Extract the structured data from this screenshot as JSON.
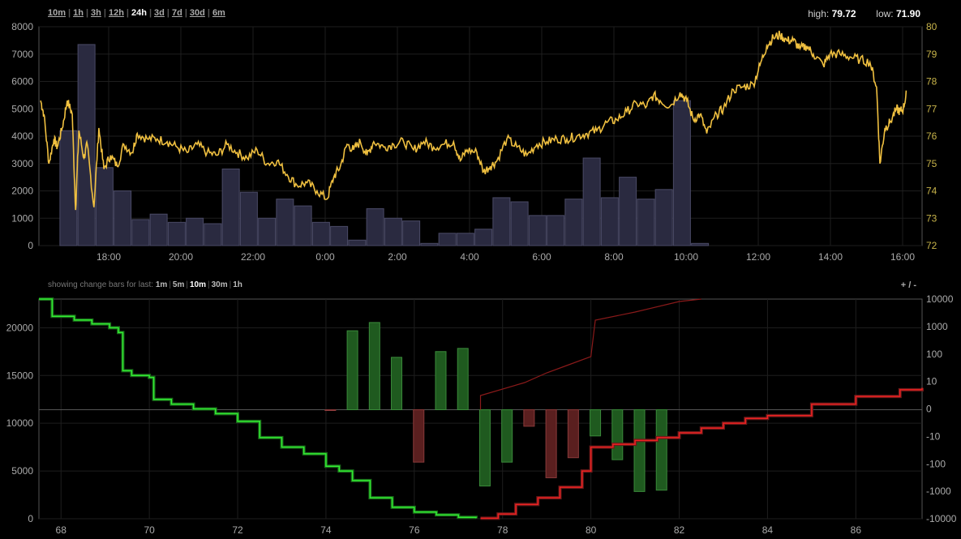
{
  "range_links": [
    {
      "label": "10m",
      "active": false
    },
    {
      "label": "1h",
      "active": false
    },
    {
      "label": "3h",
      "active": false
    },
    {
      "label": "12h",
      "active": false
    },
    {
      "label": "24h",
      "active": true
    },
    {
      "label": "3d",
      "active": false
    },
    {
      "label": "7d",
      "active": false
    },
    {
      "label": "30d",
      "active": false
    },
    {
      "label": "6m",
      "active": false
    }
  ],
  "stats": {
    "high_label": "high:",
    "high_value": "79.72",
    "low_label": "low:",
    "low_value": "71.90"
  },
  "change_bars": {
    "prefix": "showing change bars for last:",
    "options": [
      {
        "label": "1m",
        "active": false
      },
      {
        "label": "5m",
        "active": false
      },
      {
        "label": "10m",
        "active": true
      },
      {
        "label": "30m",
        "active": false
      },
      {
        "label": "1h",
        "active": false
      }
    ]
  },
  "zoom": {
    "plus": "+",
    "sep": "/",
    "minus": "-"
  },
  "colors": {
    "price_line": "#f0c040",
    "volume_bar": "#2a2a40",
    "bid_line": "#33ee33",
    "ask_line": "#ee2222",
    "up_bar": "#1f5a1f",
    "down_bar": "#5a1f1f"
  },
  "chart_data": [
    {
      "type": "bar+line",
      "x_tick_labels": [
        "18:00",
        "20:00",
        "22:00",
        "0:00",
        "2:00",
        "4:00",
        "6:00",
        "8:00",
        "10:00",
        "12:00",
        "14:00",
        "16:00"
      ],
      "y_left_ticks": [
        0,
        1000,
        2000,
        3000,
        4000,
        5000,
        6000,
        7000,
        8000
      ],
      "y_right_ticks": [
        72,
        73,
        74,
        75,
        76,
        77,
        78,
        79,
        80
      ],
      "ylim_volume": [
        0,
        8000
      ],
      "ylim_price": [
        72,
        80
      ],
      "volume_bars": [
        4200,
        7350,
        2850,
        2000,
        950,
        1150,
        850,
        1000,
        800,
        2800,
        1950,
        1000,
        1700,
        1450,
        850,
        700,
        200,
        1350,
        1000,
        900,
        80,
        450,
        450,
        600,
        1750,
        1600,
        1100,
        1100,
        1700,
        3200,
        1750,
        2500,
        1700,
        2050,
        5300,
        80
      ],
      "price_series": [
        [
          16.5,
          77.3
        ],
        [
          16.6,
          76.8
        ],
        [
          16.75,
          75.0
        ],
        [
          16.9,
          75.9
        ],
        [
          17.0,
          75.6
        ],
        [
          17.15,
          76.3
        ],
        [
          17.3,
          77.3
        ],
        [
          17.45,
          76.8
        ],
        [
          17.55,
          73.3
        ],
        [
          17.65,
          76.2
        ],
        [
          17.8,
          75.2
        ],
        [
          17.9,
          75.7
        ],
        [
          18.1,
          73.4
        ],
        [
          18.25,
          76.3
        ],
        [
          18.4,
          74.8
        ],
        [
          18.6,
          75.3
        ],
        [
          18.8,
          74.9
        ],
        [
          19.0,
          75.7
        ],
        [
          19.25,
          75.4
        ],
        [
          19.4,
          76.1
        ],
        [
          19.7,
          75.9
        ],
        [
          20.0,
          75.9
        ],
        [
          20.3,
          75.8
        ],
        [
          20.6,
          75.6
        ],
        [
          20.9,
          75.4
        ],
        [
          21.2,
          75.7
        ],
        [
          21.5,
          75.4
        ],
        [
          21.8,
          75.3
        ],
        [
          22.1,
          75.7
        ],
        [
          22.4,
          75.4
        ],
        [
          22.7,
          75.2
        ],
        [
          23.0,
          75.5
        ],
        [
          23.3,
          75.0
        ],
        [
          23.6,
          75.1
        ],
        [
          23.9,
          74.6
        ],
        [
          24.2,
          74.2
        ],
        [
          24.5,
          74.3
        ],
        [
          24.8,
          74.0
        ],
        [
          25.1,
          73.7
        ],
        [
          25.3,
          74.5
        ],
        [
          25.5,
          74.9
        ],
        [
          25.7,
          75.7
        ],
        [
          25.9,
          75.5
        ],
        [
          26.1,
          75.8
        ],
        [
          26.3,
          75.3
        ],
        [
          26.5,
          75.8
        ],
        [
          26.8,
          75.6
        ],
        [
          27.1,
          75.7
        ],
        [
          27.4,
          75.8
        ],
        [
          27.7,
          75.5
        ],
        [
          28.0,
          75.8
        ],
        [
          28.3,
          75.6
        ],
        [
          28.6,
          75.7
        ],
        [
          28.9,
          75.8
        ],
        [
          29.1,
          75.1
        ],
        [
          29.3,
          75.5
        ],
        [
          29.6,
          75.4
        ],
        [
          29.8,
          74.7
        ],
        [
          30.0,
          74.9
        ],
        [
          30.2,
          75.1
        ],
        [
          30.5,
          75.9
        ],
        [
          30.8,
          75.6
        ],
        [
          31.1,
          75.3
        ],
        [
          31.4,
          75.7
        ],
        [
          31.7,
          75.8
        ],
        [
          32.0,
          75.9
        ],
        [
          32.3,
          75.9
        ],
        [
          32.6,
          76.0
        ],
        [
          32.9,
          76.1
        ],
        [
          33.2,
          76.2
        ],
        [
          33.5,
          76.5
        ],
        [
          33.8,
          76.6
        ],
        [
          34.1,
          76.9
        ],
        [
          34.4,
          77.2
        ],
        [
          34.7,
          77.1
        ],
        [
          34.9,
          77.5
        ],
        [
          35.1,
          77.3
        ],
        [
          35.4,
          77.1
        ],
        [
          35.7,
          77.6
        ],
        [
          35.9,
          77.3
        ],
        [
          36.1,
          76.6
        ],
        [
          36.3,
          76.8
        ],
        [
          36.5,
          76.1
        ],
        [
          36.8,
          76.8
        ],
        [
          37.0,
          77.0
        ],
        [
          37.3,
          77.7
        ],
        [
          37.6,
          77.8
        ],
        [
          37.9,
          77.9
        ],
        [
          38.1,
          78.6
        ],
        [
          38.3,
          79.3
        ],
        [
          38.5,
          79.6
        ],
        [
          38.7,
          79.7
        ],
        [
          38.9,
          79.5
        ],
        [
          39.1,
          79.5
        ],
        [
          39.3,
          79.2
        ],
        [
          39.5,
          79.3
        ],
        [
          39.7,
          79.0
        ],
        [
          40.0,
          78.6
        ],
        [
          40.2,
          79.0
        ],
        [
          40.5,
          79.0
        ],
        [
          40.8,
          78.9
        ],
        [
          41.1,
          78.8
        ],
        [
          41.4,
          78.7
        ],
        [
          41.6,
          77.8
        ],
        [
          41.7,
          75.0
        ],
        [
          41.85,
          76.3
        ],
        [
          42.0,
          76.5
        ],
        [
          42.2,
          77.0
        ],
        [
          42.3,
          76.9
        ],
        [
          42.4,
          77.0
        ],
        [
          42.5,
          77.6
        ]
      ]
    },
    {
      "type": "depth+bar",
      "x_tick_labels": [
        "68",
        "70",
        "72",
        "74",
        "76",
        "78",
        "80",
        "82",
        "84",
        "86"
      ],
      "y_left_ticks": [
        0,
        5000,
        10000,
        15000,
        20000
      ],
      "y_right_tick_labels": [
        "-10000",
        "-1000",
        "-100",
        "-10",
        "0",
        "10",
        "100",
        "1000",
        "10000"
      ],
      "xlim": [
        67.5,
        87.5
      ],
      "ylim_depth": [
        0,
        23000
      ],
      "bid_depth": [
        [
          67.5,
          23000
        ],
        [
          67.8,
          21200
        ],
        [
          68.3,
          20800
        ],
        [
          68.7,
          20400
        ],
        [
          69.1,
          20000
        ],
        [
          69.3,
          19500
        ],
        [
          69.4,
          15500
        ],
        [
          69.6,
          15000
        ],
        [
          70.0,
          14800
        ],
        [
          70.1,
          12500
        ],
        [
          70.5,
          12000
        ],
        [
          71.0,
          11500
        ],
        [
          71.5,
          11000
        ],
        [
          72.0,
          10200
        ],
        [
          72.5,
          8500
        ],
        [
          73.0,
          7500
        ],
        [
          73.5,
          6800
        ],
        [
          74.0,
          5500
        ],
        [
          74.3,
          5000
        ],
        [
          74.6,
          4000
        ],
        [
          75.0,
          2200
        ],
        [
          75.5,
          1200
        ],
        [
          76.0,
          700
        ],
        [
          76.5,
          400
        ],
        [
          77.0,
          150
        ],
        [
          77.4,
          50
        ]
      ],
      "ask_depth": [
        [
          77.5,
          50
        ],
        [
          77.9,
          500
        ],
        [
          78.3,
          1500
        ],
        [
          78.8,
          2200
        ],
        [
          79.3,
          3300
        ],
        [
          79.8,
          5000
        ],
        [
          80.0,
          7500
        ],
        [
          80.5,
          7800
        ],
        [
          81.0,
          8200
        ],
        [
          81.5,
          8500
        ],
        [
          82.0,
          9000
        ],
        [
          82.5,
          9500
        ],
        [
          83.0,
          10000
        ],
        [
          83.5,
          10500
        ],
        [
          84.0,
          10800
        ],
        [
          85.0,
          12000
        ],
        [
          86.0,
          12800
        ],
        [
          87.0,
          13500
        ],
        [
          87.5,
          13700
        ]
      ],
      "change_bar_values": [
        {
          "x": 74.1,
          "v": 0
        },
        {
          "x": 74.6,
          "v": 750
        },
        {
          "x": 75.1,
          "v": 1500
        },
        {
          "x": 75.6,
          "v": 80
        },
        {
          "x": 76.1,
          "v": -80
        },
        {
          "x": 76.6,
          "v": 130
        },
        {
          "x": 77.1,
          "v": 170
        },
        {
          "x": 77.6,
          "v": -600
        },
        {
          "x": 78.1,
          "v": -80
        },
        {
          "x": 78.6,
          "v": -3
        },
        {
          "x": 79.1,
          "v": -300
        },
        {
          "x": 79.6,
          "v": -55
        },
        {
          "x": 80.1,
          "v": -8
        },
        {
          "x": 80.6,
          "v": -65
        },
        {
          "x": 81.1,
          "v": -950
        },
        {
          "x": 81.6,
          "v": -850
        }
      ]
    }
  ]
}
